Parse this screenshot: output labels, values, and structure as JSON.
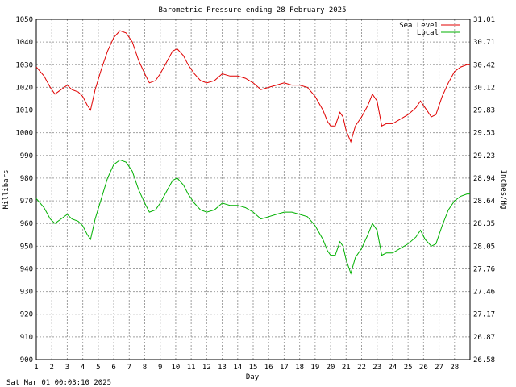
{
  "chart_data": {
    "type": "line",
    "title": "Barometric Pressure ending 28 February 2025",
    "xlabel": "Day",
    "ylabel": "Millibars",
    "y2label": "Inches/Hg",
    "timestamp": "Sat Mar 01 00:03:10 2025",
    "xlim": [
      1,
      29
    ],
    "ylim": [
      900,
      1050
    ],
    "y2lim": [
      26.58,
      31.01
    ],
    "x_ticks": [
      1,
      2,
      3,
      4,
      5,
      6,
      7,
      8,
      9,
      10,
      11,
      12,
      13,
      14,
      15,
      16,
      17,
      18,
      19,
      20,
      21,
      22,
      23,
      24,
      25,
      26,
      27,
      28
    ],
    "y_ticks": [
      900,
      910,
      920,
      930,
      940,
      950,
      960,
      970,
      980,
      990,
      1000,
      1010,
      1020,
      1030,
      1040,
      1050
    ],
    "y2_ticks": [
      "26.58",
      "26.87",
      "27.17",
      "27.46",
      "27.76",
      "28.05",
      "28.35",
      "28.64",
      "28.94",
      "29.23",
      "29.53",
      "29.83",
      "30.12",
      "30.42",
      "30.71",
      "31.01"
    ],
    "grid": true,
    "legend": "top-right",
    "colors": {
      "sea_level": "#e00000",
      "local": "#00b000",
      "grid": "#a0a0a0"
    },
    "series": [
      {
        "name": "Sea Level",
        "points": [
          [
            1.0,
            1029
          ],
          [
            1.5,
            1025
          ],
          [
            1.9,
            1020
          ],
          [
            2.2,
            1017
          ],
          [
            2.6,
            1019
          ],
          [
            3.0,
            1021
          ],
          [
            3.3,
            1019
          ],
          [
            3.7,
            1018
          ],
          [
            4.0,
            1016
          ],
          [
            4.3,
            1012
          ],
          [
            4.5,
            1010
          ],
          [
            4.8,
            1019
          ],
          [
            5.2,
            1028
          ],
          [
            5.6,
            1036
          ],
          [
            6.0,
            1042
          ],
          [
            6.4,
            1045
          ],
          [
            6.8,
            1044
          ],
          [
            7.2,
            1040
          ],
          [
            7.6,
            1032
          ],
          [
            8.0,
            1026
          ],
          [
            8.3,
            1022
          ],
          [
            8.7,
            1023
          ],
          [
            9.0,
            1026
          ],
          [
            9.4,
            1031
          ],
          [
            9.8,
            1036
          ],
          [
            10.1,
            1037
          ],
          [
            10.5,
            1034
          ],
          [
            10.8,
            1030
          ],
          [
            11.2,
            1026
          ],
          [
            11.6,
            1023
          ],
          [
            12.0,
            1022
          ],
          [
            12.5,
            1023
          ],
          [
            13.0,
            1026
          ],
          [
            13.5,
            1025
          ],
          [
            14.0,
            1025
          ],
          [
            14.5,
            1024
          ],
          [
            15.0,
            1022
          ],
          [
            15.5,
            1019
          ],
          [
            16.0,
            1020
          ],
          [
            16.5,
            1021
          ],
          [
            17.0,
            1022
          ],
          [
            17.5,
            1021
          ],
          [
            18.0,
            1021
          ],
          [
            18.5,
            1020
          ],
          [
            19.0,
            1016
          ],
          [
            19.5,
            1010
          ],
          [
            19.8,
            1005
          ],
          [
            20.0,
            1003
          ],
          [
            20.3,
            1003
          ],
          [
            20.6,
            1009
          ],
          [
            20.8,
            1007
          ],
          [
            21.0,
            1001
          ],
          [
            21.3,
            996
          ],
          [
            21.6,
            1003
          ],
          [
            22.0,
            1007
          ],
          [
            22.4,
            1012
          ],
          [
            22.7,
            1017
          ],
          [
            23.0,
            1014
          ],
          [
            23.3,
            1003
          ],
          [
            23.6,
            1004
          ],
          [
            24.0,
            1004
          ],
          [
            24.5,
            1006
          ],
          [
            25.0,
            1008
          ],
          [
            25.5,
            1011
          ],
          [
            25.8,
            1014
          ],
          [
            26.1,
            1011
          ],
          [
            26.5,
            1007
          ],
          [
            26.8,
            1008
          ],
          [
            27.2,
            1016
          ],
          [
            27.6,
            1022
          ],
          [
            28.0,
            1027
          ],
          [
            28.4,
            1029
          ],
          [
            28.8,
            1030
          ],
          [
            29.0,
            1030
          ]
        ]
      },
      {
        "name": "Local",
        "points": [
          [
            1.0,
            971
          ],
          [
            1.5,
            967
          ],
          [
            1.9,
            962
          ],
          [
            2.2,
            960
          ],
          [
            2.6,
            962
          ],
          [
            3.0,
            964
          ],
          [
            3.3,
            962
          ],
          [
            3.7,
            961
          ],
          [
            4.0,
            959
          ],
          [
            4.3,
            955
          ],
          [
            4.5,
            953
          ],
          [
            4.8,
            962
          ],
          [
            5.2,
            971
          ],
          [
            5.6,
            980
          ],
          [
            6.0,
            986
          ],
          [
            6.4,
            988
          ],
          [
            6.8,
            987
          ],
          [
            7.2,
            983
          ],
          [
            7.6,
            975
          ],
          [
            8.0,
            969
          ],
          [
            8.3,
            965
          ],
          [
            8.7,
            966
          ],
          [
            9.0,
            969
          ],
          [
            9.4,
            974
          ],
          [
            9.8,
            979
          ],
          [
            10.1,
            980
          ],
          [
            10.5,
            977
          ],
          [
            10.8,
            973
          ],
          [
            11.2,
            969
          ],
          [
            11.6,
            966
          ],
          [
            12.0,
            965
          ],
          [
            12.5,
            966
          ],
          [
            13.0,
            969
          ],
          [
            13.5,
            968
          ],
          [
            14.0,
            968
          ],
          [
            14.5,
            967
          ],
          [
            15.0,
            965
          ],
          [
            15.5,
            962
          ],
          [
            16.0,
            963
          ],
          [
            16.5,
            964
          ],
          [
            17.0,
            965
          ],
          [
            17.5,
            965
          ],
          [
            18.0,
            964
          ],
          [
            18.5,
            963
          ],
          [
            19.0,
            959
          ],
          [
            19.5,
            953
          ],
          [
            19.8,
            948
          ],
          [
            20.0,
            946
          ],
          [
            20.3,
            946
          ],
          [
            20.6,
            952
          ],
          [
            20.8,
            950
          ],
          [
            21.0,
            944
          ],
          [
            21.3,
            938
          ],
          [
            21.6,
            945
          ],
          [
            22.0,
            949
          ],
          [
            22.4,
            955
          ],
          [
            22.7,
            960
          ],
          [
            23.0,
            957
          ],
          [
            23.3,
            946
          ],
          [
            23.6,
            947
          ],
          [
            24.0,
            947
          ],
          [
            24.5,
            949
          ],
          [
            25.0,
            951
          ],
          [
            25.5,
            954
          ],
          [
            25.8,
            957
          ],
          [
            26.1,
            953
          ],
          [
            26.5,
            950
          ],
          [
            26.8,
            951
          ],
          [
            27.2,
            959
          ],
          [
            27.6,
            966
          ],
          [
            28.0,
            970
          ],
          [
            28.4,
            972
          ],
          [
            28.8,
            973
          ],
          [
            29.0,
            973
          ]
        ]
      }
    ]
  }
}
